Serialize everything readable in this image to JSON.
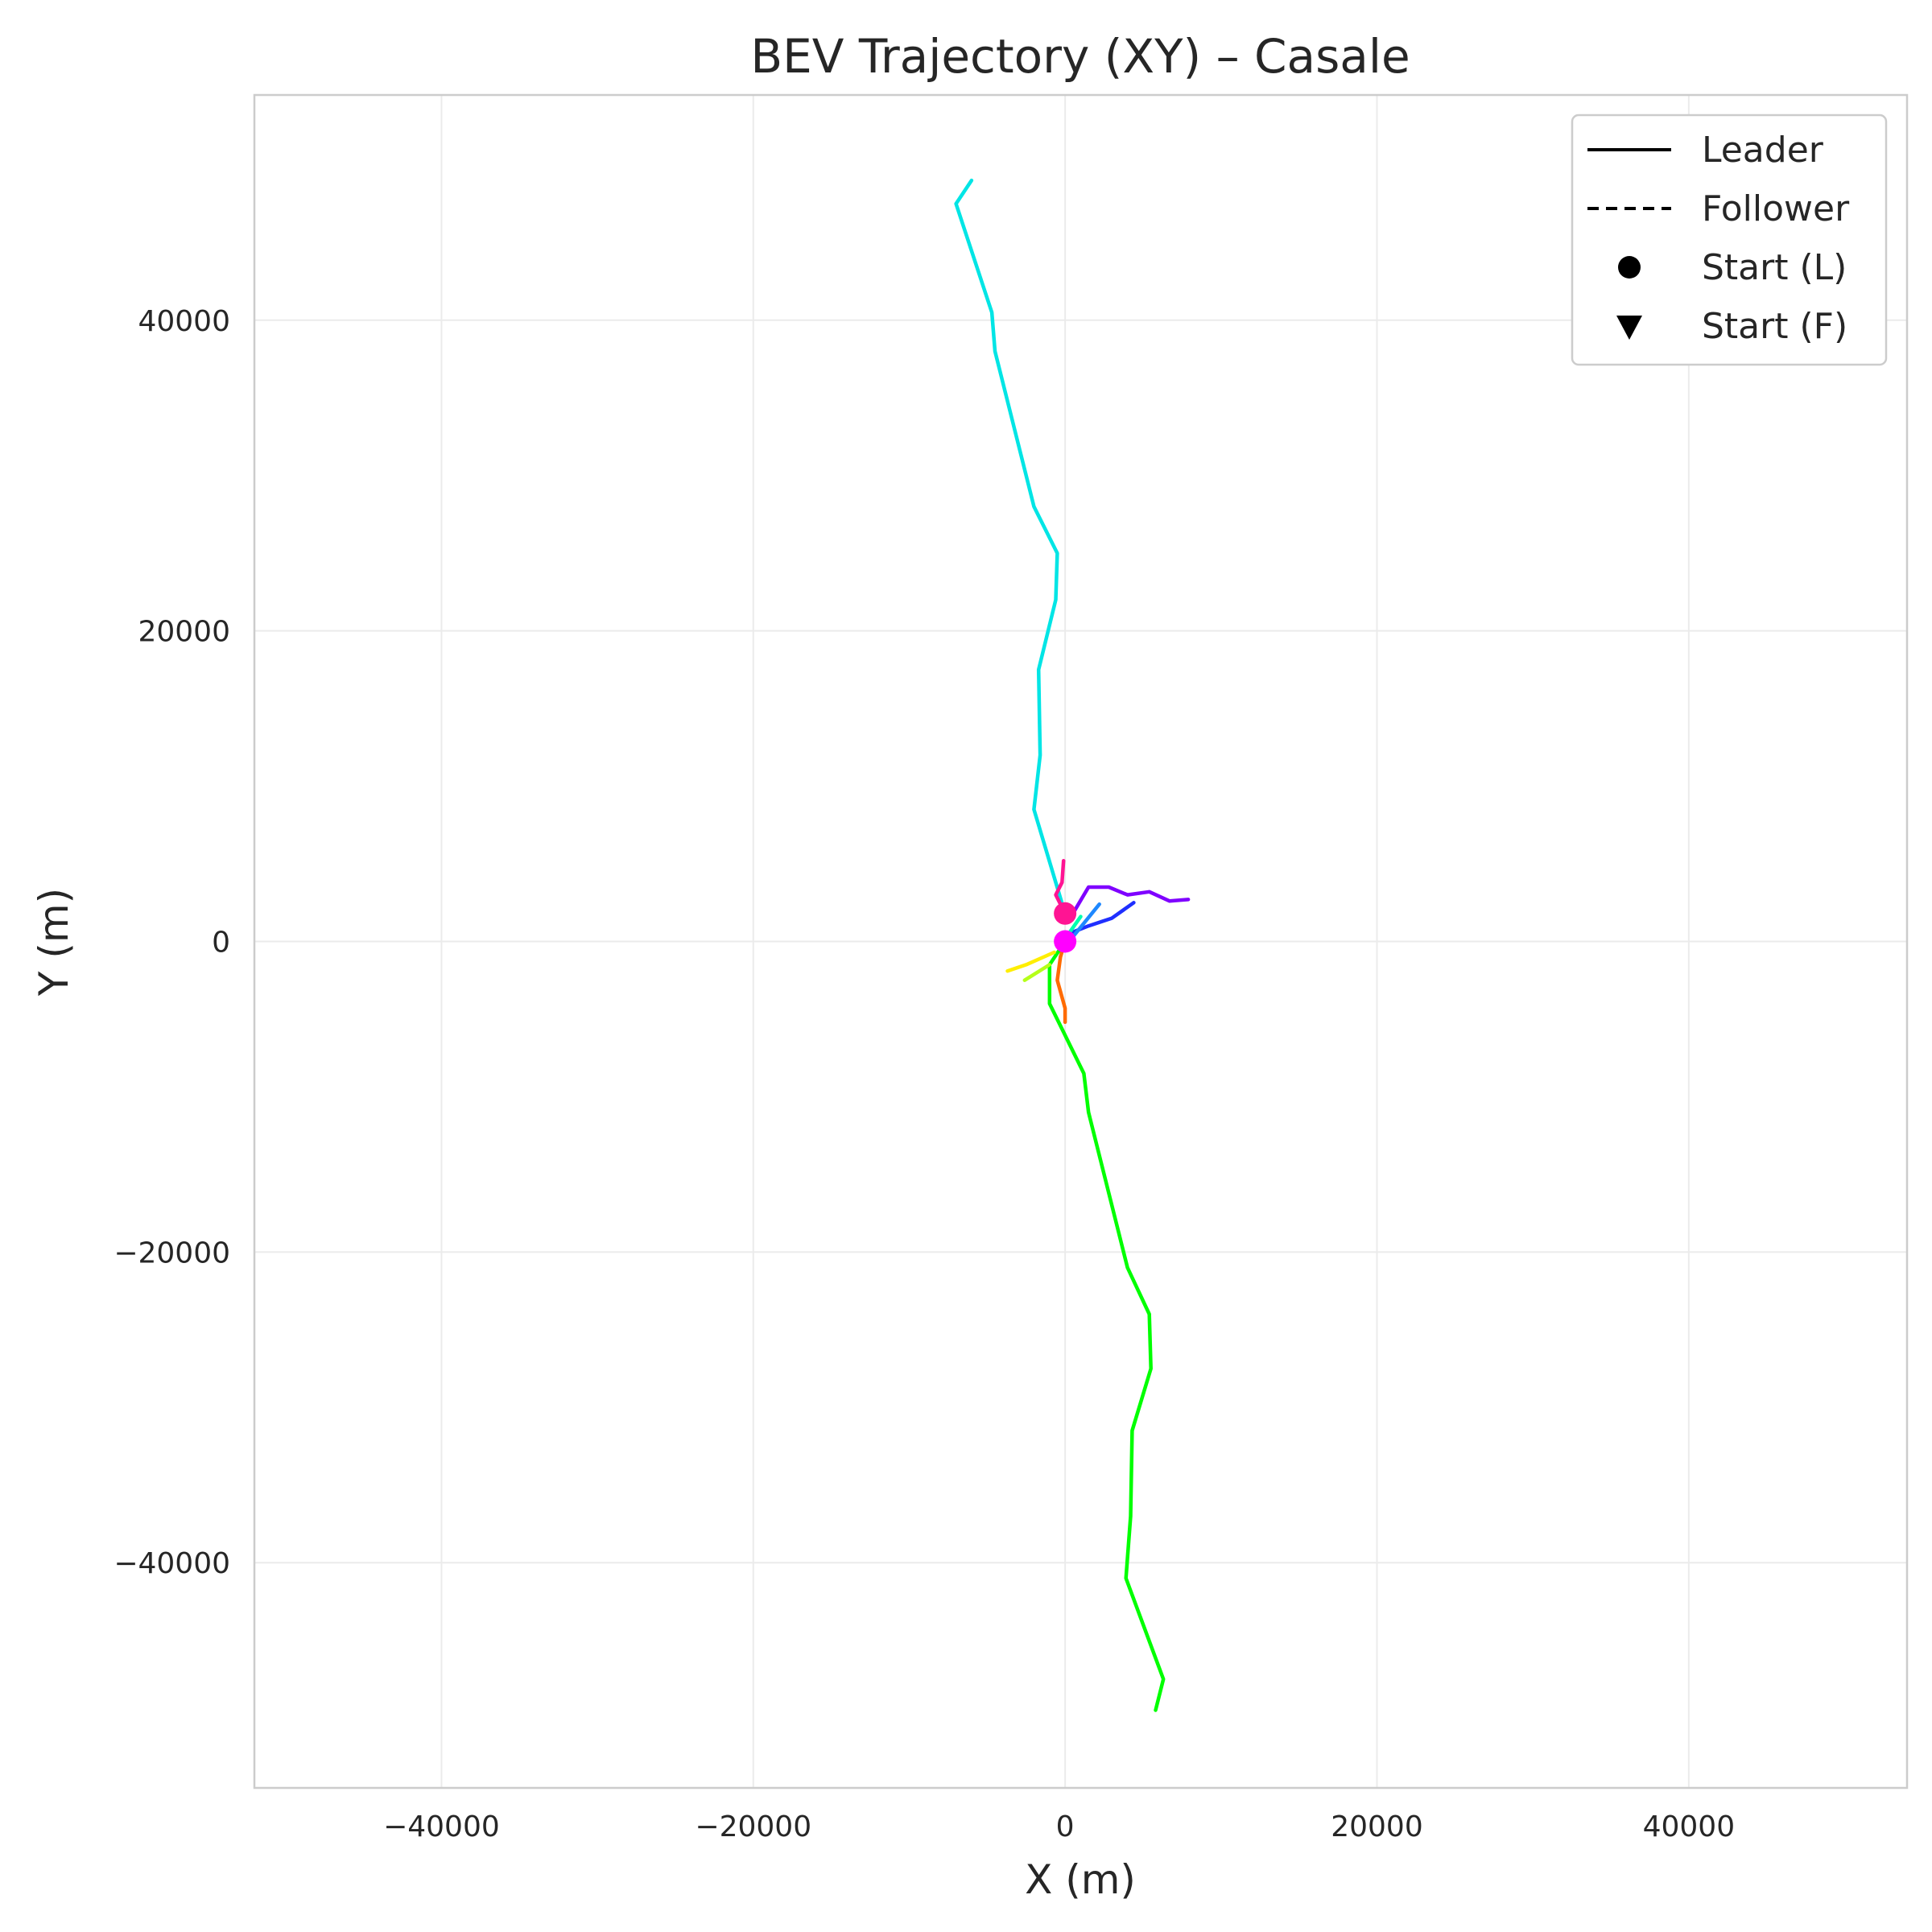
{
  "chart_data": {
    "type": "line",
    "title": "BEV Trajectory (XY) – Casale",
    "xlabel": "X (m)",
    "ylabel": "Y (m)",
    "xlim": [
      -52000,
      54000
    ],
    "ylim": [
      -54500,
      54500
    ],
    "x_ticks": [
      -40000,
      -20000,
      0,
      20000,
      40000
    ],
    "y_ticks": [
      -40000,
      -20000,
      0,
      20000,
      40000
    ],
    "x_tick_labels": [
      "−40000",
      "−20000",
      "0",
      "20000",
      "40000"
    ],
    "y_tick_labels": [
      "−40000",
      "−20000",
      "0",
      "20000",
      "40000"
    ],
    "grid": true,
    "legend": {
      "placement": "top-right",
      "entries": [
        {
          "label": "Leader",
          "symbol": "solid-line"
        },
        {
          "label": "Follower",
          "symbol": "dashed-line"
        },
        {
          "label": "Start (L)",
          "symbol": "circle"
        },
        {
          "label": "Start (F)",
          "symbol": "triangle-down"
        }
      ]
    },
    "series": [
      {
        "color": "#00e5e5",
        "points": [
          [
            0,
            1800
          ],
          [
            -600,
            3800
          ],
          [
            -2000,
            8500
          ],
          [
            -1600,
            12000
          ],
          [
            -1700,
            17500
          ],
          [
            -600,
            22000
          ],
          [
            -500,
            25000
          ],
          [
            -2000,
            28000
          ],
          [
            -4500,
            38000
          ],
          [
            -4700,
            40500
          ],
          [
            -7000,
            47500
          ],
          [
            -6000,
            49000
          ]
        ]
      },
      {
        "color": "#00ff00",
        "points": [
          [
            0,
            0
          ],
          [
            -1000,
            -1500
          ],
          [
            -1000,
            -4000
          ],
          [
            1200,
            -8500
          ],
          [
            1500,
            -11000
          ],
          [
            4000,
            -21000
          ],
          [
            5400,
            -24000
          ],
          [
            5500,
            -27500
          ],
          [
            4300,
            -31500
          ],
          [
            4200,
            -37000
          ],
          [
            3900,
            -41000
          ],
          [
            6300,
            -47500
          ],
          [
            5800,
            -49500
          ]
        ]
      },
      {
        "color": "#7f00ff",
        "points": [
          [
            500,
            1800
          ],
          [
            1500,
            3500
          ],
          [
            2800,
            3500
          ],
          [
            4000,
            3000
          ],
          [
            5400,
            3200
          ],
          [
            6700,
            2600
          ],
          [
            7900,
            2700
          ]
        ]
      },
      {
        "color": "#1f2fff",
        "points": [
          [
            500,
            600
          ],
          [
            1500,
            1000
          ],
          [
            3000,
            1500
          ],
          [
            4400,
            2500
          ]
        ]
      },
      {
        "color": "#1e88ff",
        "points": [
          [
            500,
            300
          ],
          [
            2200,
            2400
          ]
        ]
      },
      {
        "color": "#ff1493",
        "points": [
          [
            0,
            1800
          ],
          [
            -600,
            3000
          ],
          [
            -200,
            3800
          ],
          [
            -100,
            5200
          ]
        ]
      },
      {
        "color": "#ff6b00",
        "points": [
          [
            0,
            0
          ],
          [
            -300,
            -1000
          ],
          [
            -500,
            -2500
          ],
          [
            0,
            -4300
          ],
          [
            0,
            -5200
          ]
        ]
      },
      {
        "color": "#ffee00",
        "points": [
          [
            -700,
            -700
          ],
          [
            -2500,
            -1500
          ],
          [
            -3700,
            -1900
          ]
        ]
      },
      {
        "color": "#b5ff1a",
        "points": [
          [
            -1000,
            -1500
          ],
          [
            -2600,
            -2500
          ]
        ]
      },
      {
        "color": "#00ffb0",
        "points": [
          [
            300,
            600
          ],
          [
            1000,
            1600
          ]
        ]
      }
    ],
    "start_markers": [
      {
        "color": "#ff1493",
        "x": 0,
        "y": 1800,
        "symbol": "circle"
      },
      {
        "color": "#ff00ff",
        "x": 0,
        "y": 0,
        "symbol": "circle"
      }
    ]
  }
}
